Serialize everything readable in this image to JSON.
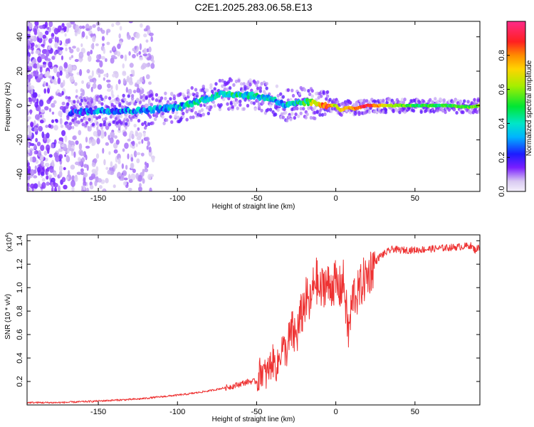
{
  "chart_data": [
    {
      "type": "heatmap",
      "title": "C2E1.2025.283.06.58.E13",
      "xlabel": "Height of straight line (km)",
      "ylabel": "Frequency (Hz)",
      "xlim": [
        -195,
        91
      ],
      "ylim": [
        -50,
        49
      ],
      "xticks": [
        "-150",
        "-100",
        "-50",
        "0",
        "50"
      ],
      "xtick_values": [
        -150,
        -100,
        -50,
        0,
        50
      ],
      "yticks": [
        "-40",
        "-20",
        "0",
        "20",
        "40"
      ],
      "ytick_values": [
        -40,
        -20,
        0,
        20,
        40
      ],
      "colorbar": {
        "label": "Normalized spectral amplitude",
        "range": [
          0,
          1
        ],
        "ticks": [
          "0.0",
          "0.2",
          "0.4",
          "0.6",
          "0.8"
        ],
        "tick_values": [
          0.0,
          0.2,
          0.4,
          0.6,
          0.8
        ]
      },
      "ridge": {
        "x": [
          -165,
          -150,
          -125,
          -100,
          -85,
          -70,
          -55,
          -40,
          -32,
          -25,
          -18,
          -10,
          -5,
          0,
          3,
          7,
          12,
          20,
          30,
          50,
          70,
          85,
          91
        ],
        "frequency": [
          -4,
          -3,
          -3,
          -1,
          3,
          7,
          6,
          4,
          0,
          1,
          2,
          1,
          0,
          0,
          -3,
          -1,
          -2,
          0,
          0,
          0,
          0,
          -1,
          0
        ],
        "amplitude": [
          0.22,
          0.3,
          0.32,
          0.34,
          0.38,
          0.42,
          0.4,
          0.36,
          0.34,
          0.4,
          0.5,
          0.75,
          0.9,
          0.6,
          0.7,
          0.75,
          0.8,
          0.95,
          0.7,
          0.5,
          0.5,
          0.55,
          0.6
        ]
      }
    },
    {
      "type": "line",
      "title": "",
      "xlabel": "Height of straight line (km)",
      "ylabel": "SNR (10 * v/v)",
      "scale_label": "(x10",
      "scale_exp": "4",
      "scale_close": ")",
      "xlim": [
        -195,
        91
      ],
      "ylim": [
        0,
        1.45
      ],
      "xticks": [
        "-150",
        "-100",
        "-50",
        "0",
        "50"
      ],
      "xtick_values": [
        -150,
        -100,
        -50,
        0,
        50
      ],
      "yticks": [
        "0.2",
        "0.4",
        "0.6",
        "0.8",
        "1.0",
        "1.2",
        "1.4"
      ],
      "ytick_values": [
        0.2,
        0.4,
        0.6,
        0.8,
        1.0,
        1.2,
        1.4
      ],
      "series": [
        {
          "name": "SNR",
          "color": "#ee3333",
          "x": [
            -195,
            -175,
            -155,
            -140,
            -125,
            -110,
            -95,
            -80,
            -65,
            -55,
            -50,
            -47,
            -44,
            -40,
            -37,
            -34,
            -31,
            -28,
            -25,
            -22,
            -19,
            -16,
            -13,
            -10,
            -7,
            -4,
            -1,
            2,
            5,
            8,
            11,
            14,
            17,
            20,
            24,
            28,
            32,
            36,
            40,
            50,
            60,
            70,
            80,
            85,
            88,
            91
          ],
          "y": [
            0.02,
            0.02,
            0.03,
            0.04,
            0.05,
            0.07,
            0.09,
            0.12,
            0.16,
            0.2,
            0.2,
            0.3,
            0.25,
            0.38,
            0.32,
            0.5,
            0.45,
            0.62,
            0.58,
            0.75,
            0.9,
            0.85,
            1.1,
            0.95,
            1.05,
            1.0,
            1.05,
            0.98,
            1.05,
            0.6,
            0.95,
            0.95,
            1.05,
            1.1,
            1.2,
            1.27,
            1.3,
            1.33,
            1.32,
            1.32,
            1.33,
            1.34,
            1.35,
            1.36,
            1.32,
            1.35
          ]
        }
      ]
    }
  ]
}
